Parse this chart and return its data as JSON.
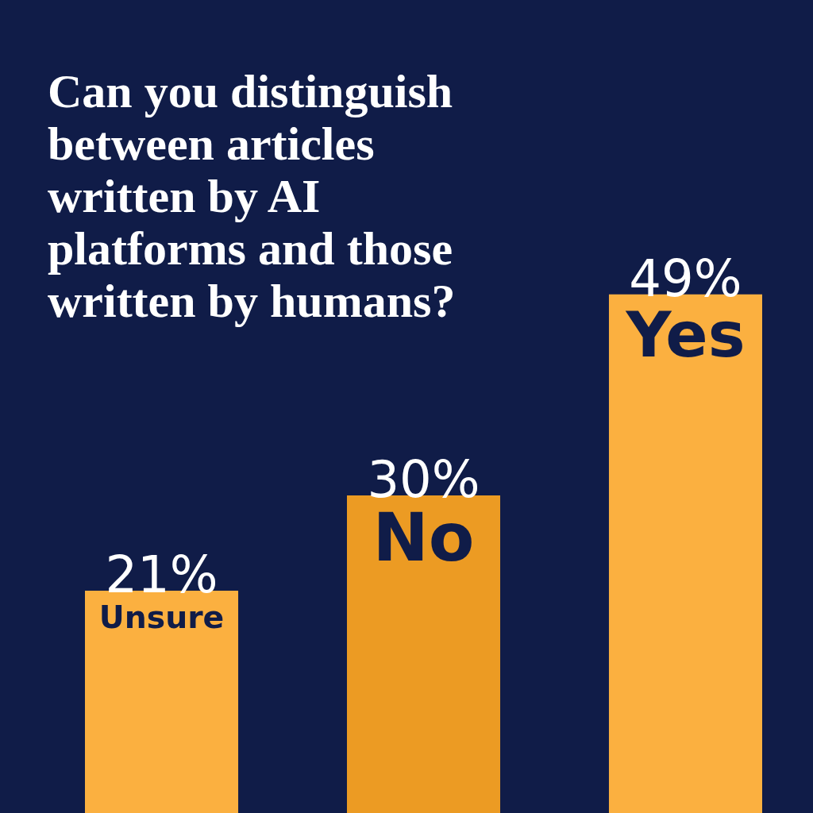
{
  "chart_data": {
    "type": "bar",
    "title": "Can you distinguish between articles written by AI platforms and those written by humans?",
    "categories": [
      "Unsure",
      "No",
      "Yes"
    ],
    "values": [
      21,
      30,
      49
    ],
    "colors": [
      "#fbb040",
      "#ec9b23",
      "#fbb040"
    ],
    "value_labels": [
      "21%",
      "30%",
      "49%"
    ]
  }
}
